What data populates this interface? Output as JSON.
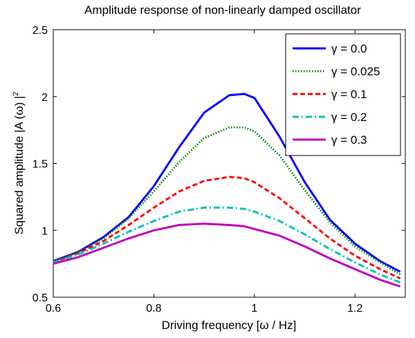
{
  "chart_data": {
    "type": "line",
    "title": "Amplitude response of non-linearly damped oscillator",
    "xlabel": "Driving frequency [ω / Hz]",
    "ylabel": "Squared amplitude |A (ω) |",
    "ylabel_superscript": "2",
    "xlim": [
      0.6,
      1.3
    ],
    "ylim": [
      0.5,
      2.5
    ],
    "xticks": [
      0.6,
      0.8,
      1.0,
      1.2
    ],
    "xtick_labels": [
      "0.6",
      "0.8",
      "1",
      "1.2"
    ],
    "yticks": [
      0.5,
      1.0,
      1.5,
      2.0,
      2.5
    ],
    "ytick_labels": [
      "0.5",
      "1",
      "1.5",
      "2",
      "2.5"
    ],
    "grid": false,
    "legend_position": "top-right",
    "x": [
      0.6,
      0.65,
      0.7,
      0.75,
      0.8,
      0.85,
      0.9,
      0.95,
      0.98,
      1.0,
      1.05,
      1.1,
      1.15,
      1.2,
      1.25,
      1.29
    ],
    "series": [
      {
        "name": "γ = 0.0",
        "color": "#0000ff",
        "dash": "solid",
        "values": [
          0.77,
          0.84,
          0.95,
          1.1,
          1.33,
          1.62,
          1.88,
          2.01,
          2.02,
          1.99,
          1.7,
          1.36,
          1.08,
          0.9,
          0.77,
          0.69
        ]
      },
      {
        "name": "γ = 0.025",
        "color": "#008000",
        "dash": "dotted",
        "values": [
          0.77,
          0.84,
          0.94,
          1.09,
          1.29,
          1.51,
          1.69,
          1.77,
          1.77,
          1.74,
          1.56,
          1.3,
          1.06,
          0.88,
          0.76,
          0.67
        ]
      },
      {
        "name": "γ = 0.1",
        "color": "#ff0000",
        "dash": "dashed",
        "values": [
          0.76,
          0.83,
          0.92,
          1.04,
          1.17,
          1.29,
          1.37,
          1.4,
          1.39,
          1.36,
          1.24,
          1.09,
          0.94,
          0.81,
          0.71,
          0.64
        ]
      },
      {
        "name": "γ = 0.2",
        "color": "#00bfbf",
        "dash": "dashdot",
        "values": [
          0.76,
          0.82,
          0.9,
          0.99,
          1.07,
          1.14,
          1.17,
          1.17,
          1.16,
          1.14,
          1.07,
          0.97,
          0.86,
          0.76,
          0.67,
          0.61
        ]
      },
      {
        "name": "γ = 0.3",
        "color": "#bf00bf",
        "dash": "solid",
        "values": [
          0.75,
          0.8,
          0.87,
          0.94,
          1.0,
          1.04,
          1.05,
          1.04,
          1.03,
          1.01,
          0.96,
          0.88,
          0.79,
          0.71,
          0.63,
          0.58
        ]
      }
    ]
  }
}
